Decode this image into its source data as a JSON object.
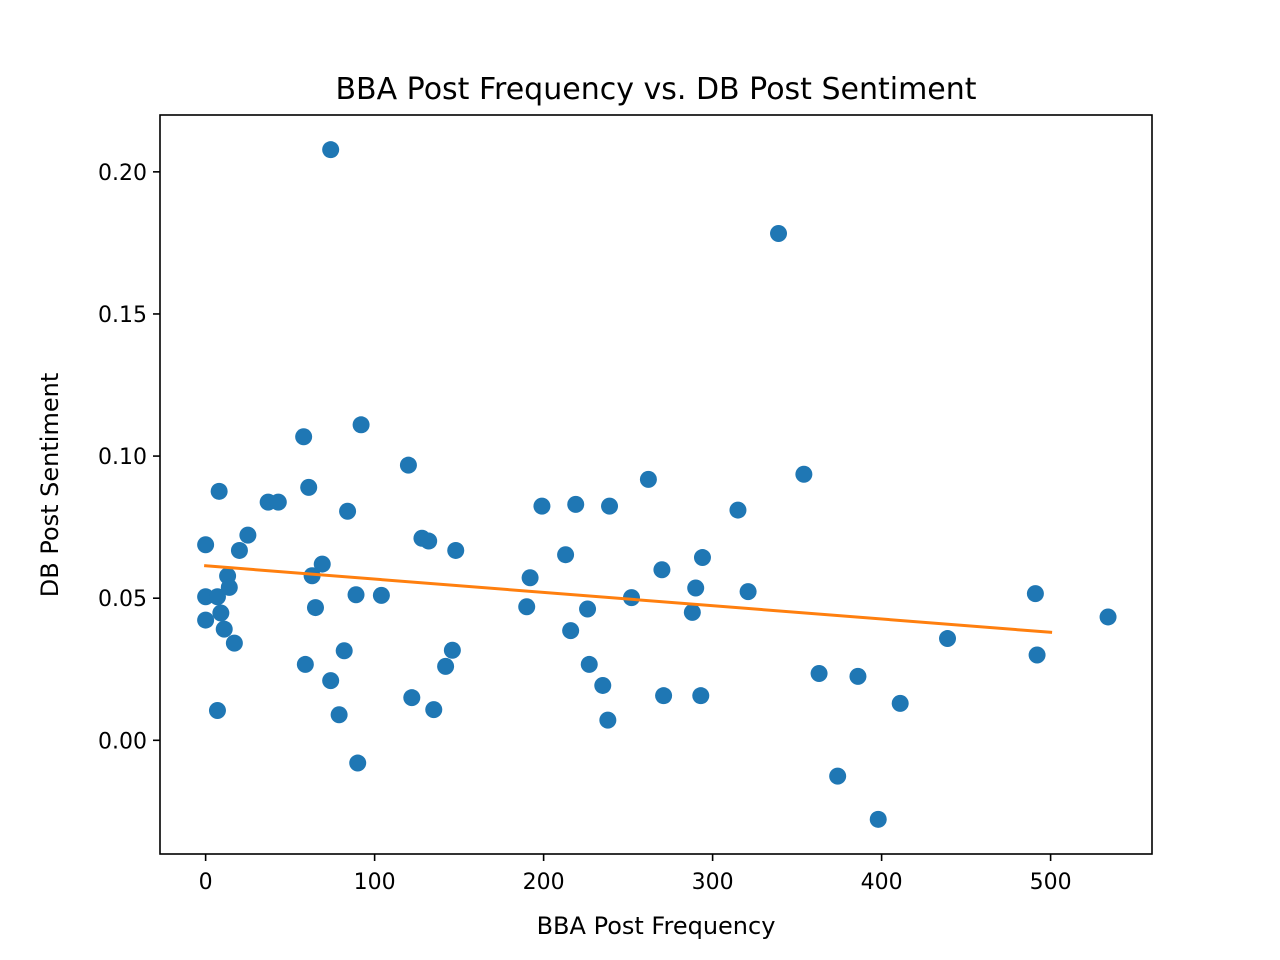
{
  "chart_data": {
    "type": "scatter",
    "title": "BBA Post Frequency vs. DB Post Sentiment",
    "xlabel": "BBA Post Frequency",
    "ylabel": "DB Post Sentiment",
    "xlim": [
      -27,
      560
    ],
    "ylim": [
      -0.04,
      0.22
    ],
    "xticks": [
      0,
      100,
      200,
      300,
      400,
      500
    ],
    "xtick_labels": [
      "0",
      "100",
      "200",
      "300",
      "400",
      "500"
    ],
    "yticks": [
      0.0,
      0.05,
      0.1,
      0.15,
      0.2
    ],
    "ytick_labels": [
      "0.00",
      "0.05",
      "0.10",
      "0.15",
      "0.20"
    ],
    "grid": false,
    "series": [
      {
        "name": "posts",
        "kind": "scatter",
        "color": "#1f77b4",
        "points": [
          [
            0,
            0.0688
          ],
          [
            0,
            0.0505
          ],
          [
            0,
            0.0423
          ],
          [
            7,
            0.0505
          ],
          [
            7,
            0.0105
          ],
          [
            8,
            0.0876
          ],
          [
            9,
            0.0448
          ],
          [
            11,
            0.0391
          ],
          [
            13,
            0.0578
          ],
          [
            14,
            0.0538
          ],
          [
            17,
            0.0342
          ],
          [
            20,
            0.0668
          ],
          [
            25,
            0.0722
          ],
          [
            37,
            0.0838
          ],
          [
            43,
            0.0838
          ],
          [
            58,
            0.1068
          ],
          [
            59,
            0.0267
          ],
          [
            61,
            0.089
          ],
          [
            63,
            0.0579
          ],
          [
            65,
            0.0467
          ],
          [
            69,
            0.062
          ],
          [
            74,
            0.2078
          ],
          [
            74,
            0.021
          ],
          [
            79,
            0.009
          ],
          [
            82,
            0.0315
          ],
          [
            84,
            0.0806
          ],
          [
            89,
            0.0512
          ],
          [
            90,
            -0.008
          ],
          [
            92,
            0.111
          ],
          [
            104,
            0.051
          ],
          [
            120,
            0.0968
          ],
          [
            122,
            0.015
          ],
          [
            128,
            0.0711
          ],
          [
            132,
            0.0701
          ],
          [
            135,
            0.0108
          ],
          [
            142,
            0.026
          ],
          [
            146,
            0.0317
          ],
          [
            148,
            0.0668
          ],
          [
            190,
            0.047
          ],
          [
            192,
            0.0572
          ],
          [
            199,
            0.0824
          ],
          [
            213,
            0.0653
          ],
          [
            216,
            0.0386
          ],
          [
            219,
            0.083
          ],
          [
            226,
            0.0462
          ],
          [
            227,
            0.0267
          ],
          [
            235,
            0.0193
          ],
          [
            238,
            0.0071
          ],
          [
            239,
            0.0824
          ],
          [
            252,
            0.0502
          ],
          [
            262,
            0.0918
          ],
          [
            270,
            0.06
          ],
          [
            271,
            0.0157
          ],
          [
            288,
            0.045
          ],
          [
            290,
            0.0536
          ],
          [
            293,
            0.0157
          ],
          [
            294,
            0.0643
          ],
          [
            315,
            0.081
          ],
          [
            321,
            0.0523
          ],
          [
            339,
            0.1783
          ],
          [
            354,
            0.0936
          ],
          [
            363,
            0.0235
          ],
          [
            374,
            -0.0126
          ],
          [
            386,
            0.0225
          ],
          [
            398,
            -0.0278
          ],
          [
            411,
            0.013
          ],
          [
            439,
            0.0358
          ],
          [
            491,
            0.0516
          ],
          [
            492,
            0.03
          ],
          [
            534,
            0.0434
          ]
        ]
      },
      {
        "name": "trend line",
        "kind": "line",
        "color": "#ff7f0e",
        "points": [
          [
            0,
            0.0614
          ],
          [
            500,
            0.038
          ]
        ]
      }
    ]
  }
}
